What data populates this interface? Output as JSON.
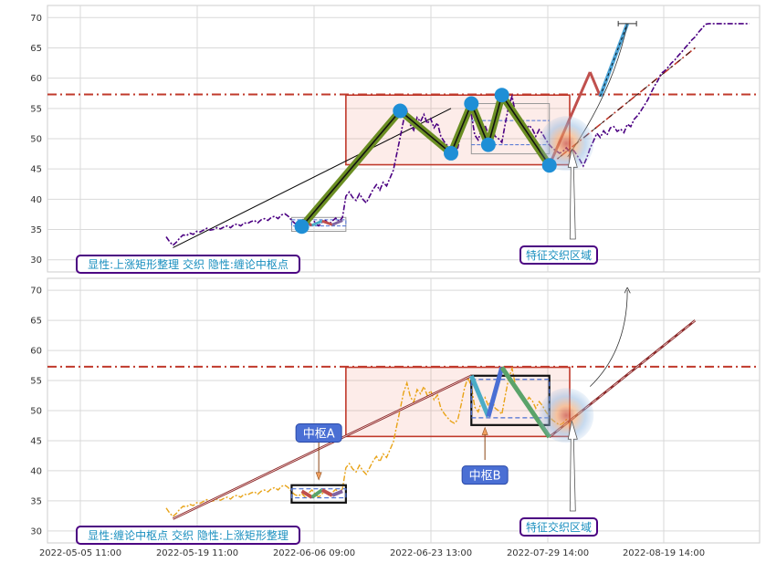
{
  "chart_data": [
    {
      "type": "line",
      "title": "",
      "x_tick_labels": [
        "2022-05-05 11:00",
        "2022-05-19 11:00",
        "2022-06-06 09:00",
        "2022-06-23 13:00",
        "2022-07-29 14:00",
        "2022-08-19 14:00"
      ],
      "ylim": [
        28,
        72
      ],
      "y_ticks": [
        30,
        35,
        40,
        45,
        50,
        55,
        60,
        65,
        70
      ],
      "grid": true,
      "resistance_level": 57.3,
      "price_series": {
        "name": "",
        "style": "dash-dot",
        "color": "#4b0082",
        "x": [
          0,
          1,
          2,
          3,
          4,
          5,
          6,
          7,
          8,
          9,
          10,
          11,
          12,
          13,
          14,
          15,
          16,
          17,
          18,
          19,
          20,
          21,
          22,
          23,
          24,
          25,
          26,
          27,
          28,
          29,
          30,
          31,
          32,
          33,
          34,
          35,
          36,
          37,
          38,
          39,
          40,
          41,
          42,
          43,
          44,
          45,
          46,
          47,
          48,
          49,
          50,
          51,
          52,
          53,
          54,
          55,
          56,
          57,
          58,
          59,
          60,
          61,
          62,
          63,
          64,
          65,
          66,
          67,
          68,
          69,
          70,
          71,
          72,
          73,
          74,
          75,
          76,
          77,
          78,
          79,
          80,
          81,
          82,
          83,
          84,
          85,
          86,
          87,
          88,
          89,
          90,
          91,
          92,
          93,
          94,
          95,
          96,
          97,
          98,
          99,
          100,
          101,
          102,
          103,
          104,
          105,
          106,
          107,
          108,
          109,
          110,
          111,
          112,
          113,
          114,
          115,
          116,
          117,
          118,
          119,
          120,
          121,
          122,
          123,
          124,
          125,
          126,
          127,
          128,
          129,
          130,
          131,
          132,
          133,
          134,
          135,
          136,
          137,
          138,
          139,
          140,
          141,
          142,
          143,
          144,
          145,
          146,
          147,
          148,
          149,
          150,
          151,
          152,
          153,
          154,
          155,
          156,
          157,
          158,
          159,
          160,
          161,
          162,
          163,
          164,
          165,
          166,
          167,
          168,
          169,
          170,
          171,
          172
        ],
        "y": [
          33.8,
          33.0,
          32.4,
          32.9,
          33.6,
          34.1,
          34.0,
          34.4,
          34.2,
          34.7,
          34.6,
          34.9,
          35.2,
          34.9,
          35.0,
          35.3,
          35.1,
          35.4,
          35.6,
          35.3,
          35.8,
          35.9,
          35.6,
          36.1,
          36.0,
          36.3,
          36.5,
          36.1,
          36.6,
          36.8,
          36.5,
          37.0,
          37.2,
          36.8,
          37.4,
          37.6,
          37.2,
          36.5,
          36.0,
          35.8,
          36.2,
          35.6,
          36.3,
          36.8,
          36.1,
          35.6,
          36.2,
          36.5,
          35.9,
          36.4,
          36.9,
          36.3,
          37.0,
          40.5,
          41.2,
          40.3,
          39.8,
          40.9,
          40.0,
          39.4,
          40.5,
          41.6,
          42.4,
          41.5,
          42.8,
          42.2,
          43.5,
          44.8,
          47.5,
          50.2,
          53.0,
          54.6,
          52.3,
          51.4,
          53.5,
          52.8,
          54.0,
          52.5,
          53.3,
          51.8,
          52.6,
          50.4,
          49.5,
          48.8,
          48.2,
          47.9,
          48.5,
          51.0,
          53.8,
          55.5,
          54.0,
          50.6,
          49.8,
          51.5,
          52.2,
          50.8,
          51.9,
          50.4,
          50.0,
          49.4,
          52.5,
          55.4,
          57.0,
          54.2,
          53.0,
          52.6,
          51.3,
          52.2,
          51.6,
          50.4,
          51.5,
          50.8,
          49.8,
          49.0,
          48.4,
          48.0,
          47.6,
          47.9,
          48.5,
          47.8,
          48.2,
          47.4,
          46.5,
          45.5,
          46.8,
          48.4,
          49.6,
          50.9,
          50.2,
          51.3,
          50.6,
          51.8,
          52.0,
          51.2,
          51.6,
          51.0,
          52.4,
          52.0,
          53.2,
          53.8,
          54.6,
          55.5,
          56.4,
          57.6,
          58.7,
          59.6,
          60.8,
          61.2,
          61.8,
          62.5,
          63.0,
          63.7,
          64.3,
          65.0,
          65.6,
          66.3,
          66.8,
          67.6,
          68.2,
          68.9,
          69.0,
          69.0,
          69.0,
          69.0,
          69.0,
          69.0,
          69.0,
          69.0,
          69.0,
          69.0,
          69.0,
          69.0,
          69.0
        ]
      },
      "stroke_points": {
        "x": [
          40,
          69,
          84,
          90,
          95,
          99,
          113
        ],
        "y": [
          35.5,
          54.6,
          47.6,
          55.8,
          49.0,
          57.2,
          45.6
        ]
      },
      "trend_line": {
        "x": [
          2,
          84
        ],
        "y": [
          32,
          55
        ]
      },
      "long_trendline": {
        "x": [
          113,
          156
        ],
        "y": [
          45.6,
          65
        ]
      },
      "hub_rect": {
        "x": [
          53,
          119
        ],
        "y": [
          45.7,
          57.2
        ]
      },
      "small_hub": {
        "x": [
          37,
          53
        ],
        "y": [
          34.7,
          37.0
        ]
      },
      "small_hub_inner": {
        "x": [
          37,
          53
        ],
        "y": [
          35.6,
          36.6
        ]
      },
      "inner_hub": {
        "x": [
          90,
          113
        ],
        "y": [
          47.5,
          55.8
        ]
      },
      "inner_hub_lines": [
        49.0,
        53.0
      ],
      "impulse": {
        "x": [
          113,
          125,
          128,
          136
        ],
        "y": [
          45.6,
          61.0,
          57.0,
          69.0
        ]
      },
      "cross_point": {
        "x": 118,
        "y": 49.2
      },
      "annotations": [
        {
          "text": "显性:上涨矩形整理 交织 隐性:缠论中枢点"
        },
        {
          "text": "特征交织区域"
        }
      ]
    },
    {
      "type": "line",
      "title": "",
      "x_tick_labels": [
        "2022-05-05 11:00",
        "2022-05-19 11:00",
        "2022-06-06 09:00",
        "2022-06-23 13:00",
        "2022-07-29 14:00",
        "2022-08-19 14:00"
      ],
      "ylim": [
        28,
        72
      ],
      "y_ticks": [
        30,
        35,
        40,
        45,
        50,
        55,
        60,
        65,
        70
      ],
      "grid": true,
      "resistance_level": 57.3,
      "price_series": {
        "name": "",
        "style": "dash-dot",
        "color": "#e8a317"
      },
      "trend_line": {
        "x": [
          2,
          90
        ],
        "y": [
          32,
          55.8
        ]
      },
      "rising_line": {
        "x": [
          113,
          156
        ],
        "y": [
          45.6,
          65
        ]
      },
      "hub_rect": {
        "x": [
          53,
          119
        ],
        "y": [
          45.7,
          57.2
        ]
      },
      "hub_a": {
        "x": [
          37,
          53
        ],
        "y": [
          34.7,
          37.6
        ]
      },
      "hub_a_inner": {
        "x": [
          37,
          53
        ],
        "y": [
          35.5,
          37.0
        ]
      },
      "hub_b": {
        "x": [
          90,
          113
        ],
        "y": [
          47.6,
          55.8
        ]
      },
      "hub_b_inner": {
        "x": [
          90,
          113
        ],
        "y": [
          48.8,
          55.2
        ]
      },
      "hub_a_segments": {
        "x": [
          40,
          43,
          46,
          49,
          52
        ],
        "y": [
          36.6,
          35.6,
          36.8,
          35.9,
          36.6
        ]
      },
      "hub_b_segments": {
        "x": [
          90,
          95,
          99,
          113
        ],
        "y": [
          55.8,
          49.0,
          57.2,
          45.6
        ]
      },
      "cross_point": {
        "x": 118,
        "y": 49.2
      },
      "hub_labels": [
        {
          "text": "中枢A"
        },
        {
          "text": "中枢B"
        }
      ],
      "annotations": [
        {
          "text": "显性:缠论中枢点 交织 隐性:上涨矩形整理"
        },
        {
          "text": "特征交织区域"
        }
      ]
    }
  ]
}
